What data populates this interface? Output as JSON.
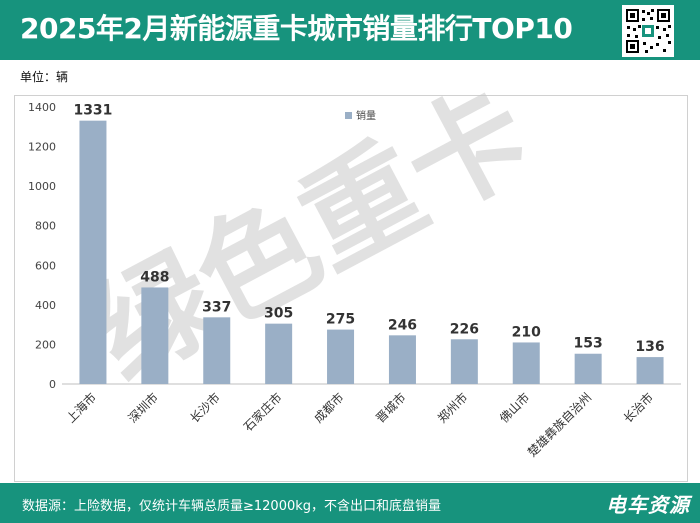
{
  "header": {
    "title": "2025年2月新能源重卡城市销量排行TOP10",
    "qr_code_icon": "qr-code-icon"
  },
  "unit_label": "单位：辆",
  "watermark": "绿色重卡",
  "footer": {
    "note": "数据源：上险数据，仅统计车辆总质量≥12000kg，不含出口和底盘销量",
    "brand": "电车资源"
  },
  "colors": {
    "header_bg": "#17937d",
    "bar": "#9aafc6",
    "watermark": "#c8c8c8"
  },
  "chart_data": {
    "type": "bar",
    "categories": [
      "上海市",
      "深圳市",
      "长沙市",
      "石家庄市",
      "成都市",
      "晋城市",
      "郑州市",
      "佛山市",
      "楚雄彝族自治州",
      "长治市"
    ],
    "series": [
      {
        "name": "销量",
        "values": [
          1331,
          488,
          337,
          305,
          275,
          246,
          226,
          210,
          153,
          136
        ]
      }
    ],
    "ylim": [
      0,
      1400
    ],
    "yticks": [
      0,
      200,
      400,
      600,
      800,
      1000,
      1200,
      1400
    ],
    "grid": false,
    "legend_position": "top-center"
  }
}
